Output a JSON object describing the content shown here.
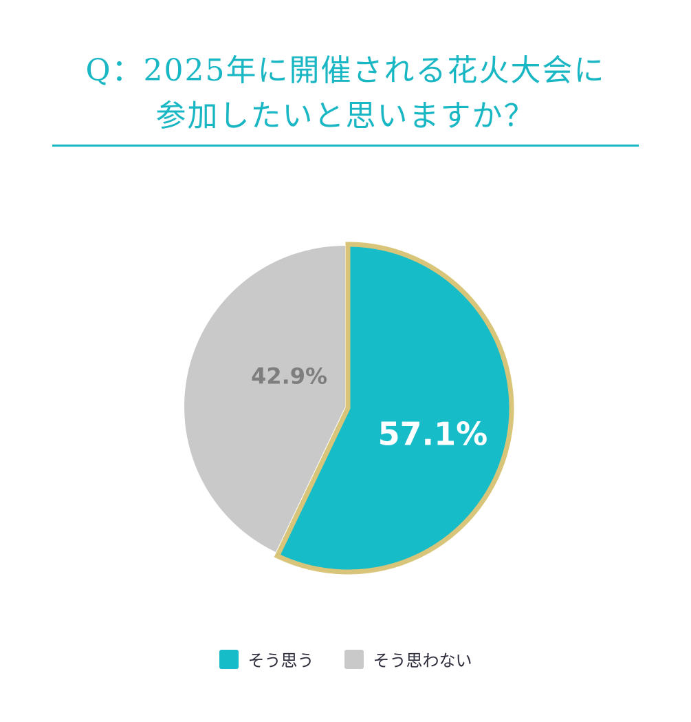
{
  "title": {
    "line1": "Q：2025年に開催される花火大会に",
    "line2": "参加したいと思いますか？"
  },
  "colors": {
    "accent": "#19b6c4",
    "yes": "#16bcc8",
    "no": "#c9c9c9",
    "border_gold": "#d8c57a",
    "no_label": "#7e7e7e",
    "yes_label": "#ffffff"
  },
  "chart_data": {
    "type": "pie",
    "categories": [
      "そう思う",
      "そう思わない"
    ],
    "values": [
      57.1,
      42.9
    ],
    "labels": [
      "57.1%",
      "42.9%"
    ],
    "legend_position": "bottom"
  }
}
